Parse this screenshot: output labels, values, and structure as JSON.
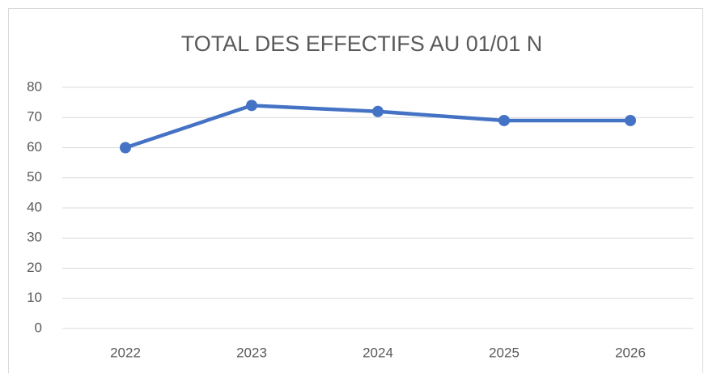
{
  "chart_data": {
    "type": "line",
    "title": "TOTAL DES EFFECTIFS AU 01/01 N",
    "categories": [
      "2022",
      "2023",
      "2024",
      "2025",
      "2026"
    ],
    "values": [
      60,
      74,
      72,
      69,
      69
    ],
    "color": "#4472c4",
    "ylim": [
      0,
      80
    ],
    "yticks": [
      0,
      10,
      20,
      30,
      40,
      50,
      60,
      70,
      80
    ],
    "grid": true
  }
}
